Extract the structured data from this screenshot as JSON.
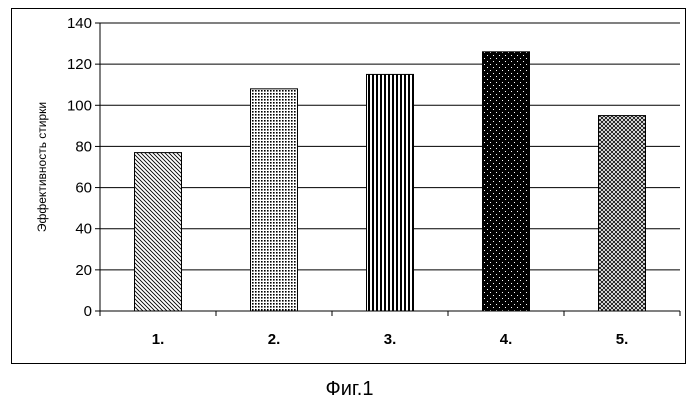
{
  "chart_data": {
    "type": "bar",
    "categories": [
      "1.",
      "2.",
      "3.",
      "4.",
      "5."
    ],
    "values": [
      77,
      108,
      115,
      126,
      95
    ],
    "ylabel": "Эффективность стирки",
    "xlabel": "",
    "ylim": [
      0,
      140
    ],
    "yticks": [
      0,
      20,
      40,
      60,
      80,
      100,
      120,
      140
    ],
    "grid": true,
    "fills": [
      "diag-hatch",
      "fine-dots",
      "vertical-stripes",
      "black-dots",
      "crosshatch"
    ]
  },
  "caption": "Фиг.1"
}
